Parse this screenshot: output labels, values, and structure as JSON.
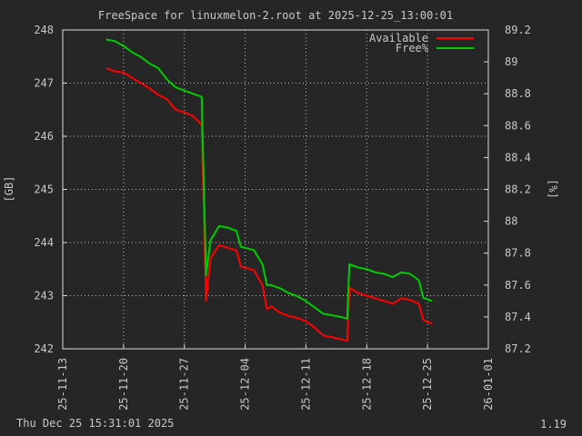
{
  "chart_data": {
    "type": "line",
    "title": "FreeSpace for linuxmelon-2.root  at 2025-12-25_13:00:01",
    "ylabel": "[GB]",
    "y2label": "[%]",
    "ylim": [
      242,
      248
    ],
    "y2lim": [
      87.2,
      89.2
    ],
    "xlim": [
      "2025-11-13",
      "2026-01-01"
    ],
    "y_ticks": [
      "242",
      "243",
      "244",
      "245",
      "246",
      "247",
      "248"
    ],
    "y2_ticks": [
      "87.2",
      "87.4",
      "87.6",
      "87.8",
      "88",
      "88.2",
      "88.4",
      "88.6",
      "88.8",
      "89",
      "89.2"
    ],
    "x_ticks": [
      "25-11-13",
      "25-11-20",
      "25-11-27",
      "25-12-04",
      "25-12-11",
      "25-12-18",
      "25-12-25",
      "26-01-01"
    ],
    "grid": true,
    "legend_position": "top-right",
    "series": [
      {
        "name": "Available",
        "axis": "left",
        "color": "#ff0000",
        "points": [
          [
            "2025-11-18",
            247.28
          ],
          [
            "2025-11-19",
            247.22
          ],
          [
            "2025-11-20",
            247.2
          ],
          [
            "2025-11-21",
            247.1
          ],
          [
            "2025-11-22",
            247.0
          ],
          [
            "2025-11-23",
            246.9
          ],
          [
            "2025-11-24",
            246.78
          ],
          [
            "2025-11-25",
            246.7
          ],
          [
            "2025-11-26",
            246.5
          ],
          [
            "2025-11-27",
            246.45
          ],
          [
            "2025-11-28",
            246.38
          ],
          [
            "2025-11-29",
            246.22
          ],
          [
            "2025-11-29T12:00",
            242.9
          ],
          [
            "2025-11-30",
            243.7
          ],
          [
            "2025-12-01",
            243.95
          ],
          [
            "2025-12-02",
            243.9
          ],
          [
            "2025-12-03",
            243.85
          ],
          [
            "2025-12-03T12:00",
            243.55
          ],
          [
            "2025-12-05",
            243.48
          ],
          [
            "2025-12-06",
            243.2
          ],
          [
            "2025-12-06T12:00",
            242.75
          ],
          [
            "2025-12-07",
            242.8
          ],
          [
            "2025-12-08",
            242.68
          ],
          [
            "2025-12-09",
            242.62
          ],
          [
            "2025-12-10",
            242.58
          ],
          [
            "2025-12-11",
            242.52
          ],
          [
            "2025-12-12",
            242.4
          ],
          [
            "2025-12-13",
            242.25
          ],
          [
            "2025-12-14",
            242.22
          ],
          [
            "2025-12-15",
            242.18
          ],
          [
            "2025-12-15T18:00",
            242.15
          ],
          [
            "2025-12-16",
            243.15
          ],
          [
            "2025-12-17",
            243.05
          ],
          [
            "2025-12-18",
            243.0
          ],
          [
            "2025-12-19",
            242.95
          ],
          [
            "2025-12-20",
            242.9
          ],
          [
            "2025-12-21",
            242.85
          ],
          [
            "2025-12-22",
            242.95
          ],
          [
            "2025-12-23",
            242.92
          ],
          [
            "2025-12-24",
            242.85
          ],
          [
            "2025-12-24T12:00",
            242.55
          ],
          [
            "2025-12-25",
            242.5
          ],
          [
            "2025-12-25T12:00",
            242.48
          ]
        ]
      },
      {
        "name": "Free%",
        "axis": "right",
        "color": "#00cc00",
        "points": [
          [
            "2025-11-18",
            89.14
          ],
          [
            "2025-11-19",
            89.13
          ],
          [
            "2025-11-20",
            89.1
          ],
          [
            "2025-11-21",
            89.06
          ],
          [
            "2025-11-22",
            89.03
          ],
          [
            "2025-11-23",
            88.99
          ],
          [
            "2025-11-24",
            88.96
          ],
          [
            "2025-11-25",
            88.89
          ],
          [
            "2025-11-26",
            88.84
          ],
          [
            "2025-11-27",
            88.82
          ],
          [
            "2025-11-28",
            88.8
          ],
          [
            "2025-11-29",
            88.78
          ],
          [
            "2025-11-29T12:00",
            87.66
          ],
          [
            "2025-11-30",
            87.88
          ],
          [
            "2025-12-01",
            87.97
          ],
          [
            "2025-12-02",
            87.96
          ],
          [
            "2025-12-03",
            87.94
          ],
          [
            "2025-12-03T12:00",
            87.84
          ],
          [
            "2025-12-05",
            87.82
          ],
          [
            "2025-12-06",
            87.73
          ],
          [
            "2025-12-06T12:00",
            87.6
          ],
          [
            "2025-12-07",
            87.6
          ],
          [
            "2025-12-08",
            87.58
          ],
          [
            "2025-12-09",
            87.55
          ],
          [
            "2025-12-10",
            87.53
          ],
          [
            "2025-12-11",
            87.5
          ],
          [
            "2025-12-12",
            87.46
          ],
          [
            "2025-12-13",
            87.42
          ],
          [
            "2025-12-14",
            87.41
          ],
          [
            "2025-12-15",
            87.4
          ],
          [
            "2025-12-15T18:00",
            87.39
          ],
          [
            "2025-12-16",
            87.73
          ],
          [
            "2025-12-17",
            87.71
          ],
          [
            "2025-12-18",
            87.7
          ],
          [
            "2025-12-19",
            87.68
          ],
          [
            "2025-12-20",
            87.67
          ],
          [
            "2025-12-21",
            87.65
          ],
          [
            "2025-12-22",
            87.68
          ],
          [
            "2025-12-23",
            87.67
          ],
          [
            "2025-12-24",
            87.63
          ],
          [
            "2025-12-24T12:00",
            87.52
          ],
          [
            "2025-12-25",
            87.51
          ],
          [
            "2025-12-25T12:00",
            87.5
          ]
        ]
      }
    ]
  },
  "footer": {
    "timestamp": "Thu Dec 25 15:31:01 2025",
    "version": "1.19"
  }
}
